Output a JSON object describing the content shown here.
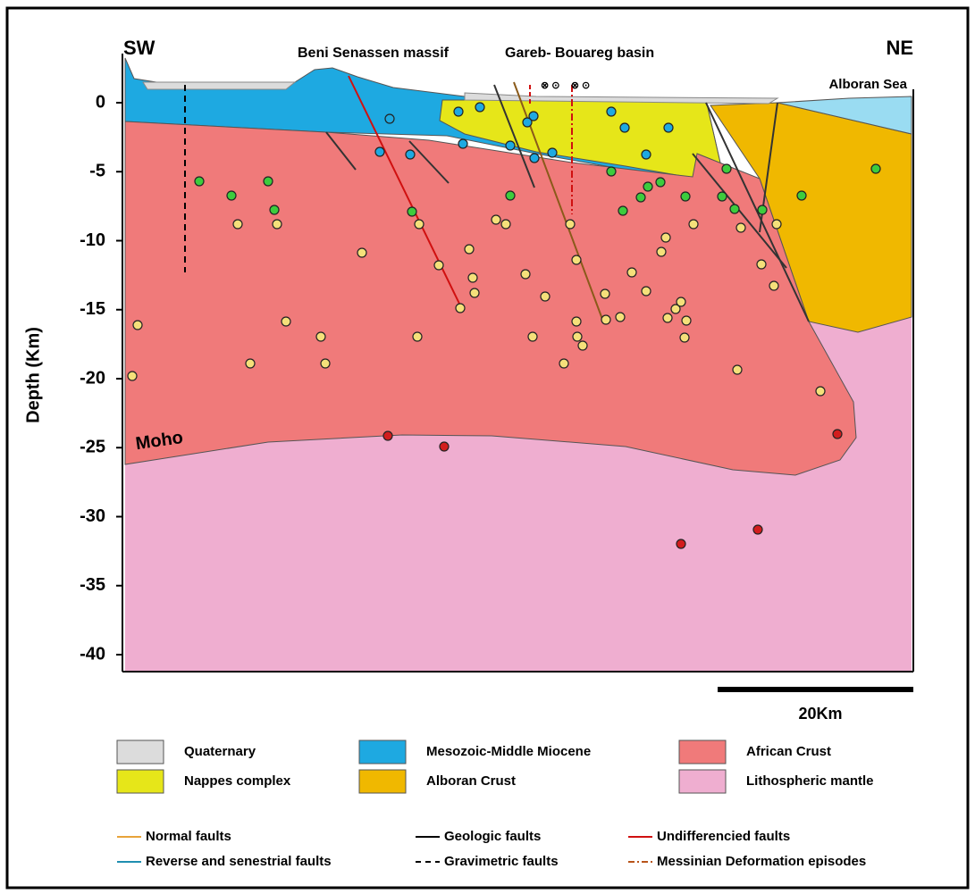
{
  "header": {
    "left": "SW",
    "right": "NE",
    "massif": "Beni Senassen massif",
    "basin": "Gareb- Bouareg basin",
    "sea": "Alboran Sea"
  },
  "axis": {
    "label": "Depth (Km)",
    "ticks": [
      0,
      -5,
      -10,
      -15,
      -20,
      -25,
      -30,
      -35,
      -40
    ]
  },
  "annotations": {
    "moho": "Moho",
    "scale": "20Km"
  },
  "legend": {
    "units": [
      {
        "name": "Quaternary",
        "color": "#dcdcdc"
      },
      {
        "name": "Nappes complex",
        "color": "#e6e619"
      },
      {
        "name": "Mesozoic-Middle Miocene",
        "color": "#1ea9e1"
      },
      {
        "name": "Alboran Crust",
        "color": "#f0b800"
      },
      {
        "name": "African Crust",
        "color": "#f07a7a"
      },
      {
        "name": "Lithospheric mantle",
        "color": "#efaed0"
      }
    ],
    "lines": [
      {
        "name": "Normal faults",
        "color": "#e8a33a",
        "style": "solid"
      },
      {
        "name": "Reverse and senestrial faults",
        "color": "#1f8fb0",
        "style": "solid"
      },
      {
        "name": "Geologic faults",
        "color": "#000000",
        "style": "solid"
      },
      {
        "name": "Gravimetric faults",
        "color": "#000000",
        "style": "dashed"
      },
      {
        "name": "Undifferencied faults",
        "color": "#d01010",
        "style": "solid"
      },
      {
        "name": "Messinian Deformation episodes",
        "color": "#b8541a",
        "style": "dashdot"
      }
    ]
  }
}
